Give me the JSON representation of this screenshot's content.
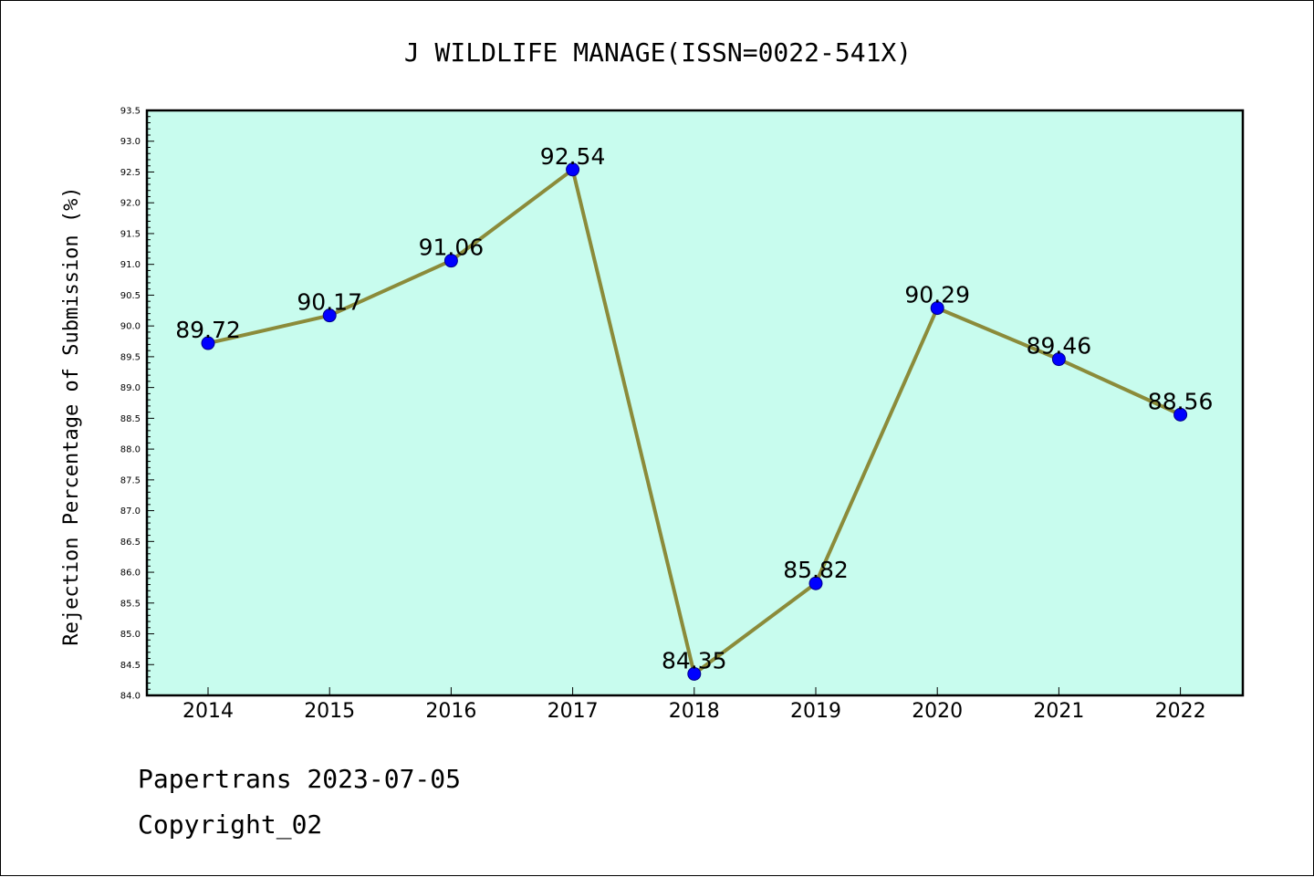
{
  "chart_data": {
    "type": "line",
    "title": "J WILDLIFE MANAGE(ISSN=0022-541X)",
    "xlabel": "",
    "ylabel": "Rejection Percentage of Submission (%)",
    "categories": [
      "2014",
      "2015",
      "2016",
      "2017",
      "2018",
      "2019",
      "2020",
      "2021",
      "2022"
    ],
    "values": [
      89.72,
      90.17,
      91.06,
      92.54,
      84.35,
      85.82,
      90.29,
      89.46,
      88.56
    ],
    "data_labels": [
      "89.72",
      "90.17",
      "91.06",
      "92.54",
      "84.35",
      "85.82",
      "90.29",
      "89.46",
      "88.56"
    ],
    "ylim": [
      84.0,
      93.5
    ],
    "ytick_step": 0.5,
    "yticks": [
      "84.0",
      "84.5",
      "85.0",
      "85.5",
      "86.0",
      "86.5",
      "87.0",
      "87.5",
      "88.0",
      "88.5",
      "89.0",
      "89.5",
      "90.0",
      "90.5",
      "91.0",
      "91.5",
      "92.0",
      "92.5",
      "93.0",
      "93.5"
    ],
    "grid": false,
    "legend": "none",
    "colors": {
      "plot_background": "#c8fcee",
      "line": "#8b8b3a",
      "marker": "#0000ff",
      "marker_edge": "#00008b"
    }
  },
  "footer": {
    "date_line": "Papertrans 2023-07-05",
    "copyright_line": "Copyright_02"
  }
}
